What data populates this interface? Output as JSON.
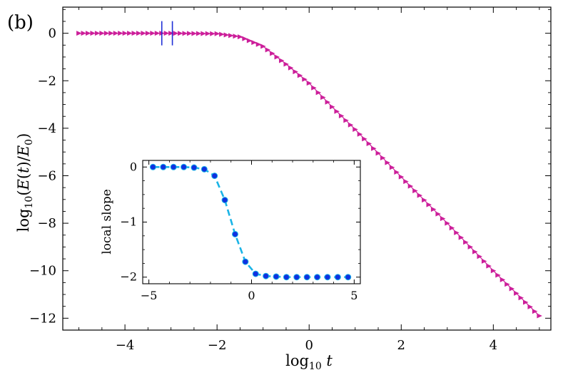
{
  "panel_label": "(b)",
  "colors": {
    "main_series": "#cc1f9a",
    "vertical_markers": "#1f2fd6",
    "inset_line": "#1ab4e6",
    "inset_points": "#1030e0",
    "frame": "#000000"
  },
  "chart_data": [
    {
      "type": "line",
      "name": "main",
      "xlabel": "log10 t",
      "ylabel": "log10 (E(t)/E0)",
      "xlim": [
        -5.35,
        5.25
      ],
      "ylim": [
        -12.5,
        1.1
      ],
      "xticks": [
        -4,
        -2,
        0,
        2,
        4
      ],
      "xtick_labels": [
        "−4",
        "−2",
        "0",
        "2",
        "4"
      ],
      "yticks": [
        0,
        -2,
        -4,
        -6,
        -8,
        -10,
        -12
      ],
      "ytick_labels": [
        "0",
        "−2",
        "−4",
        "−6",
        "−8",
        "−10",
        "−12"
      ],
      "series": [
        {
          "name": "log10 E(t)/E0",
          "marker": "right-triangle",
          "x_start": -5.0,
          "x_end": 5.0,
          "num_points": 101,
          "model": "y = -2*log10(1 + (10^x/0.1)^... ) approx: flat at 0 for x < -1.5, slope -2 for x > 0",
          "x": [
            -5,
            -4,
            -3,
            -2,
            -1.5,
            -1,
            -0.5,
            0,
            0.5,
            1,
            2,
            3,
            4,
            5
          ],
          "y": [
            0,
            0,
            0,
            -0.02,
            -0.15,
            -0.55,
            -1.3,
            -2.1,
            -3.1,
            -4.05,
            -6.05,
            -8.0,
            -10.0,
            -11.9
          ]
        }
      ],
      "vertical_markers_x": [
        -3.2,
        -2.97
      ]
    },
    {
      "type": "line",
      "name": "inset",
      "xlabel": "",
      "ylabel": "local slope",
      "xlim": [
        -5.3,
        5.3
      ],
      "ylim": [
        -2.12,
        0.12
      ],
      "xticks": [
        -5,
        0,
        5
      ],
      "xtick_labels": [
        "−5",
        "0",
        "5"
      ],
      "yticks": [
        0,
        -1,
        -2
      ],
      "ytick_labels": [
        "0",
        "−1",
        "−2"
      ],
      "series": [
        {
          "name": "local slope",
          "x": [
            -4.8,
            -4.3,
            -3.8,
            -3.3,
            -2.8,
            -2.3,
            -1.8,
            -1.3,
            -0.8,
            -0.3,
            0.2,
            0.7,
            1.2,
            1.7,
            2.2,
            2.7,
            3.2,
            3.7,
            4.2,
            4.7
          ],
          "y": [
            0,
            0,
            0,
            0,
            -0.01,
            -0.04,
            -0.16,
            -0.6,
            -1.22,
            -1.72,
            -1.94,
            -1.98,
            -1.99,
            -2.0,
            -2.0,
            -2.0,
            -2.0,
            -2.0,
            -2.0,
            -2.0
          ]
        }
      ]
    }
  ]
}
